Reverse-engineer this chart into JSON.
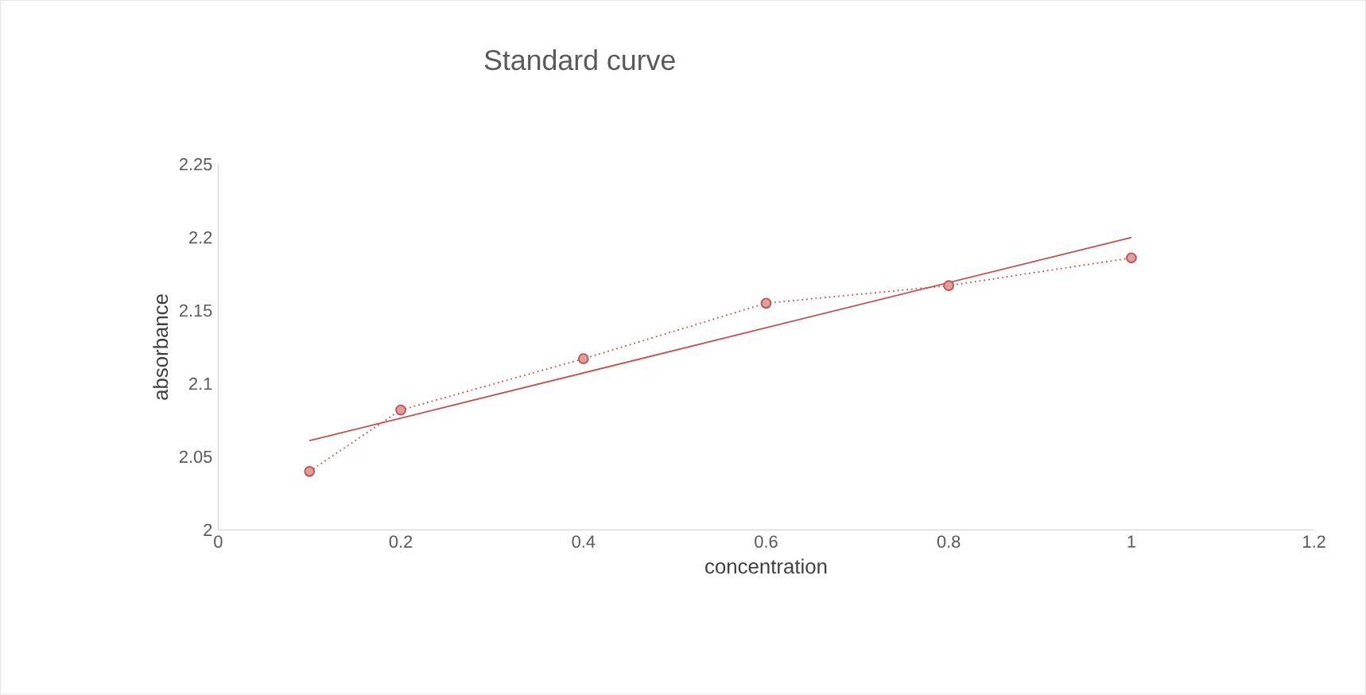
{
  "chart_data": {
    "type": "line",
    "title": "Standard curve",
    "xlabel": "concentration",
    "ylabel": "absorbance",
    "series": [
      {
        "color": "#c0504d",
        "x": [
          0.1,
          0.2,
          0.4,
          0.6,
          0.8,
          1
        ],
        "values": [
          2.04,
          2.082,
          2.117,
          2.155,
          2.167,
          2.186
        ],
        "marker": "circle",
        "line_style": "dotted"
      },
      {
        "color": "#c0504d",
        "x": [
          0.1,
          1
        ],
        "values": [
          2.061,
          2.2
        ],
        "marker": "none",
        "line_style": "solid"
      }
    ],
    "xlim": [
      0,
      1.2
    ],
    "xticks": [
      0,
      0.2,
      0.4,
      0.6,
      0.8,
      1,
      1.2
    ],
    "ylim": [
      2,
      2.25
    ],
    "yticks": [
      2,
      2.05,
      2.1,
      2.15,
      2.2,
      2.25
    ],
    "grid": false,
    "legend": false
  }
}
